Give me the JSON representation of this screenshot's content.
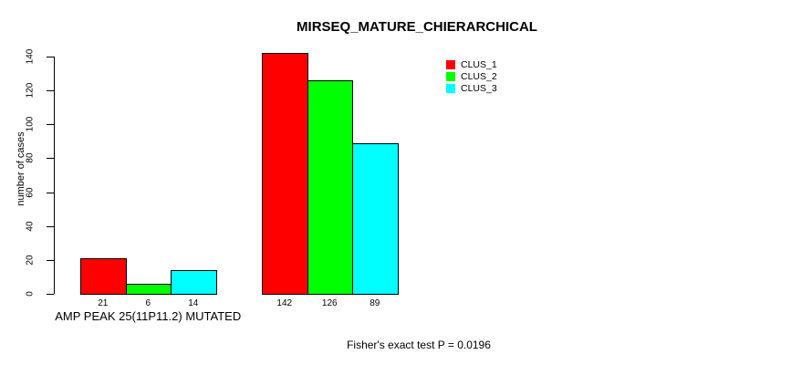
{
  "chart_data": {
    "type": "bar",
    "title": "MIRSEQ_MATURE_CHIERARCHICAL",
    "xlabel": "",
    "ylabel": "number of cases",
    "ylim": [
      0,
      140
    ],
    "y_ticks": [
      0,
      20,
      40,
      60,
      80,
      100,
      120,
      140
    ],
    "grid": false,
    "legend_position": "top-right-inside",
    "categories": [
      "AMP PEAK 25(11P11.2) MUTATED",
      ""
    ],
    "series": [
      {
        "name": "CLUS_1",
        "color": "#FF0000",
        "values": [
          21,
          142
        ]
      },
      {
        "name": "CLUS_2",
        "color": "#00FF00",
        "values": [
          6,
          126
        ]
      },
      {
        "name": "CLUS_3",
        "color": "#00FFFF",
        "values": [
          14,
          89
        ]
      }
    ],
    "bar_value_labels": [
      [
        21,
        6,
        14
      ],
      [
        142,
        126,
        89
      ]
    ],
    "footer": "Fisher's exact test P = 0.0196"
  },
  "colors": {
    "axis": "#000000",
    "background": "#FFFFFF"
  }
}
